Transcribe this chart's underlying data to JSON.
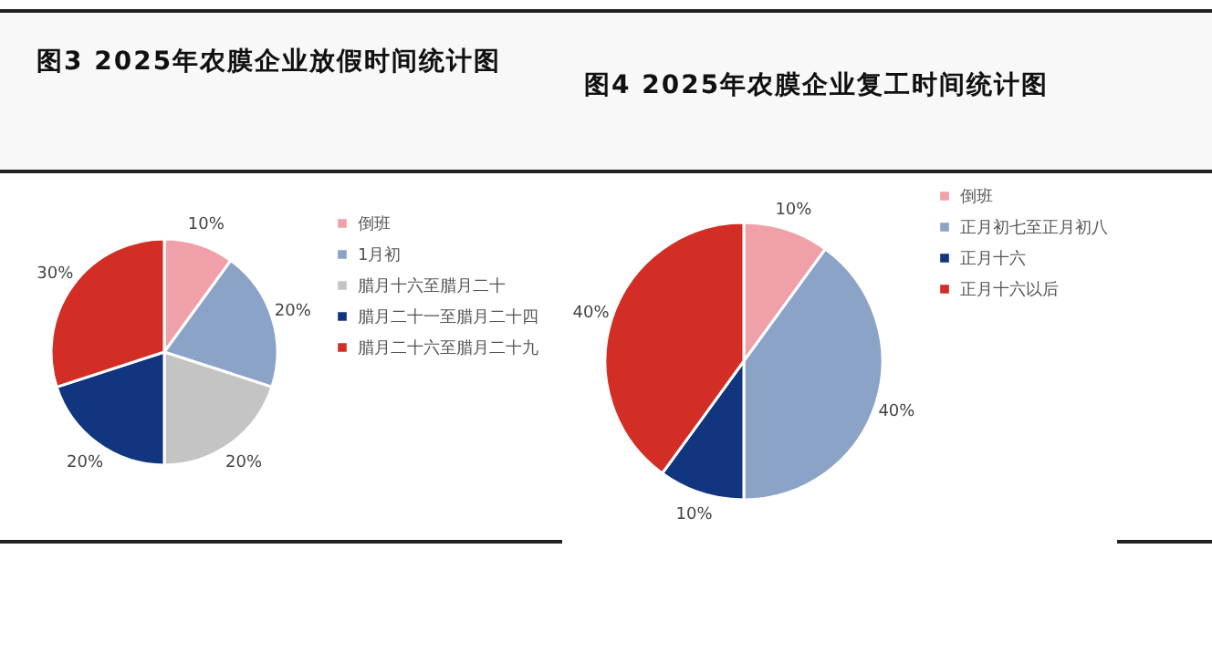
{
  "chart_data": [
    {
      "type": "pie",
      "title": "图3 2025年农膜企业放假时间统计图",
      "categories": [
        "倒班",
        "1月初",
        "腊月十六至腊月二十",
        "腊月二十一至腊月二十四",
        "腊月二十六至腊月二十九"
      ],
      "values": [
        10,
        20,
        20,
        20,
        30
      ],
      "colors": [
        "#f0a0a8",
        "#8ba3c7",
        "#c4c4c4",
        "#12357f",
        "#d22e25"
      ],
      "value_labels": [
        "10%",
        "20%",
        "20%",
        "20%",
        "30%"
      ],
      "legend": "right"
    },
    {
      "type": "pie",
      "title": "图4 2025年农膜企业复工时间统计图",
      "categories": [
        "倒班",
        "正月初七至正月初八",
        "正月十六",
        "正月十六以后"
      ],
      "values": [
        10,
        40,
        10,
        40
      ],
      "colors": [
        "#f0a0a8",
        "#8ba3c7",
        "#12357f",
        "#d22e25"
      ],
      "value_labels": [
        "10%",
        "40%",
        "10%",
        "40%"
      ],
      "legend": "right"
    }
  ]
}
